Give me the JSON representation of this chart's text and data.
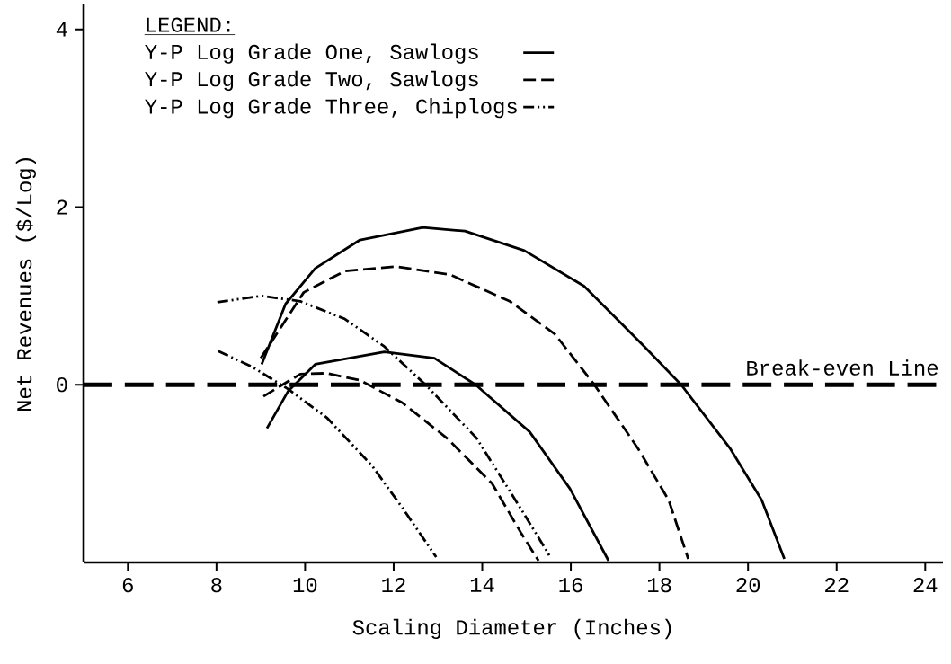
{
  "chart_data": {
    "type": "line",
    "xlabel": "Scaling Diameter (Inches)",
    "ylabel": "Net Revenues ($/Log)",
    "legend_title": "LEGEND:",
    "legend": "top left",
    "xlim": [
      5,
      24.4
    ],
    "ylim": [
      -2,
      4.28
    ],
    "xticks": [
      6,
      8,
      10,
      12,
      14,
      16,
      18,
      20,
      22,
      24
    ],
    "yticks": [
      0,
      2,
      4
    ],
    "grid": false,
    "marker": "none",
    "series": [
      {
        "name": "Y-P Log Grade One, Sawlogs",
        "color": "#000000",
        "line_style": "solid",
        "x": [
          9.02,
          9.56,
          10.23,
          11.24,
          12.66,
          13.61,
          14.95,
          16.3,
          17.66,
          18.49,
          19.6,
          20.31,
          20.82
        ],
        "values": [
          0.23,
          0.91,
          1.31,
          1.63,
          1.77,
          1.73,
          1.51,
          1.11,
          0.43,
          0,
          -0.72,
          -1.3,
          -1.96
        ]
      },
      {
        "color": "#000000",
        "line_style": "solid",
        "x": [
          9.14,
          9.62,
          10.23,
          11.79,
          12.92,
          13.85,
          15.07,
          15.98,
          16.85
        ],
        "values": [
          -0.49,
          -0.07,
          0.23,
          0.37,
          0.3,
          0,
          -0.53,
          -1.17,
          -1.98
        ]
      },
      {
        "name": "Y-P Log Grade Two, Sawlogs",
        "color": "#000000",
        "line_style": "dashed",
        "x": [
          9.0,
          9.97,
          10.9,
          12.05,
          13.27,
          14.62,
          15.64,
          16.53,
          17.52,
          18.21,
          18.65
        ],
        "values": [
          0.3,
          1.04,
          1.28,
          1.33,
          1.24,
          0.94,
          0.57,
          0,
          -0.72,
          -1.3,
          -1.96
        ]
      },
      {
        "color": "#000000",
        "line_style": "dashed",
        "x": [
          9.06,
          9.89,
          10.49,
          11.24,
          12.19,
          13.2,
          14.22,
          14.89,
          15.27
        ],
        "values": [
          -0.13,
          0.12,
          0.13,
          0.05,
          -0.2,
          -0.6,
          -1.11,
          -1.68,
          -1.98
        ]
      },
      {
        "name": "Y-P Log Grade Three, Chiplogs",
        "color": "#000000",
        "line_style": "dashdotdotted",
        "x": [
          8.02,
          9.02,
          9.89,
          10.9,
          11.79,
          12.72,
          13.87,
          14.89,
          15.49,
          15.53
        ],
        "values": [
          0.93,
          1.0,
          0.94,
          0.74,
          0.43,
          0,
          -0.6,
          -1.41,
          -1.9,
          -1.94
        ]
      },
      {
        "color": "#000000",
        "line_style": "dashdotdotted",
        "x": [
          8.04,
          8.81,
          9.62,
          10.49,
          11.51,
          12.19,
          12.96
        ],
        "values": [
          0.38,
          0.2,
          -0.05,
          -0.37,
          -0.91,
          -1.38,
          -1.94
        ]
      }
    ],
    "ref_lines": [
      {
        "axis": "y",
        "value": 0,
        "label": "Break-even Line",
        "color": "#000000",
        "line_style": "dashed"
      }
    ]
  }
}
